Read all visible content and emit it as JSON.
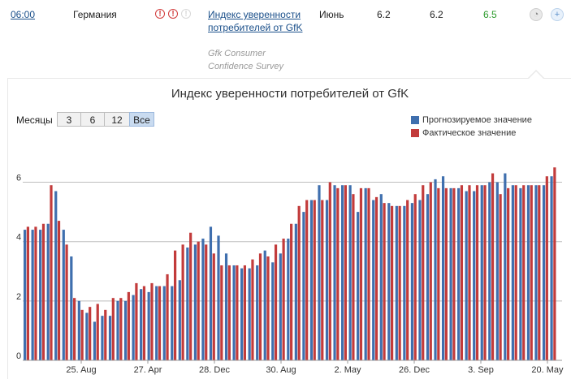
{
  "event_row": {
    "time": "06:00",
    "country": "Германия",
    "importance": [
      {
        "glyph": "!",
        "active": true
      },
      {
        "glyph": "!",
        "active": true
      },
      {
        "glyph": "!",
        "active": false
      }
    ],
    "event_name": "Индекс уверенности потребителей от GfK",
    "source": "Gfk Consumer Confidence Survey",
    "period": "Июнь",
    "actual": "6.2",
    "forecast": "6.2",
    "previous": "6.5",
    "chart_icon": "chart-icon",
    "add_icon": "plus-icon"
  },
  "controls": {
    "months_label": "Месяцы",
    "buttons": [
      "3",
      "6",
      "12",
      "Все"
    ],
    "active_button": "Все"
  },
  "colors": {
    "forecast": "#3f6fae",
    "actual": "#c23b3b",
    "grid": "#bdbdbd",
    "up_value": "#2a9a2a"
  },
  "chart_data": {
    "type": "bar",
    "title": "Индекс уверенности потребителей от GfK",
    "ylim": [
      0,
      7.3
    ],
    "y_ticks": [
      "0",
      "2",
      "4",
      "6"
    ],
    "x_tick_labels": [
      "25. Aug",
      "27. Apr",
      "28. Dec",
      "30. Aug",
      "2. May",
      "26. Dec",
      "3. Sep",
      "20. May"
    ],
    "legend_position": "top-right",
    "series": [
      {
        "name": "Прогнозируемое значение",
        "values": [
          4.4,
          4.4,
          4.4,
          4.6,
          5.7,
          4.4,
          3.5,
          2.0,
          1.6,
          1.3,
          1.5,
          1.5,
          2.0,
          2.0,
          2.2,
          2.4,
          2.3,
          2.5,
          2.5,
          2.5,
          2.7,
          3.8,
          3.9,
          4.1,
          4.5,
          4.2,
          3.6,
          3.2,
          3.1,
          3.1,
          3.2,
          3.7,
          3.3,
          3.6,
          4.1,
          4.6,
          5.0,
          5.4,
          5.9,
          5.4,
          5.9,
          5.9,
          5.9,
          5.0,
          5.8,
          5.4,
          5.6,
          5.3,
          5.2,
          5.2,
          5.3,
          5.4,
          5.6,
          6.1,
          6.2,
          5.8,
          5.8,
          5.7,
          5.7,
          5.9,
          6.0,
          6.0,
          6.3,
          5.9,
          5.8,
          5.9,
          5.9,
          5.9,
          6.2
        ],
        "note_style": "blue"
      },
      {
        "name": "Фактическое значение",
        "values": [
          4.5,
          4.5,
          4.6,
          5.9,
          4.7,
          3.9,
          2.1,
          1.7,
          1.8,
          1.9,
          1.7,
          2.1,
          2.1,
          2.3,
          2.6,
          2.5,
          2.6,
          2.5,
          2.9,
          3.7,
          3.9,
          4.3,
          4.0,
          3.9,
          3.6,
          3.2,
          3.2,
          3.2,
          3.2,
          3.4,
          3.6,
          3.5,
          3.9,
          4.1,
          4.6,
          5.2,
          5.4,
          5.4,
          5.4,
          6.0,
          5.8,
          5.9,
          5.6,
          5.8,
          5.8,
          5.5,
          5.3,
          5.2,
          5.2,
          5.4,
          5.6,
          5.9,
          6.0,
          5.8,
          5.8,
          5.8,
          5.9,
          5.9,
          5.9,
          5.9,
          6.3,
          5.6,
          5.8,
          5.9,
          5.9,
          5.9,
          5.9,
          6.2,
          6.5
        ]
      }
    ]
  }
}
